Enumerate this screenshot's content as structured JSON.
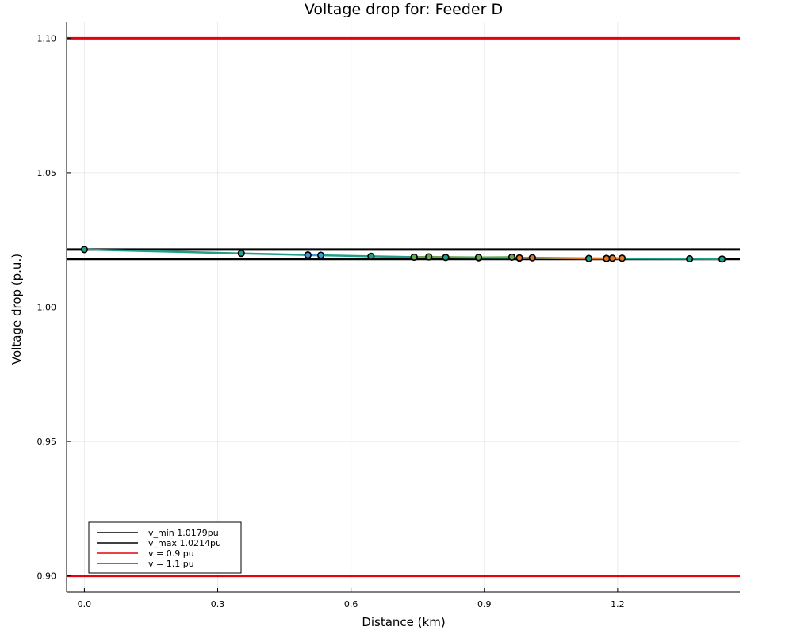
{
  "chart_data": {
    "type": "line",
    "title": "Voltage drop for: Feeder D",
    "xlabel": "Distance (km)",
    "ylabel": "Voltage drop (p.u.)",
    "xlim": [
      -0.04,
      1.475
    ],
    "ylim": [
      0.894,
      1.106
    ],
    "x_ticks": [
      0.0,
      0.3,
      0.6,
      0.9,
      1.2
    ],
    "x_tick_labels": [
      "0.0",
      "0.3",
      "0.6",
      "0.9",
      "1.2"
    ],
    "y_ticks": [
      0.9,
      0.95,
      1.0,
      1.05,
      1.1
    ],
    "y_tick_labels": [
      "0.90",
      "0.95",
      "1.00",
      "1.05",
      "1.10"
    ],
    "grid": true,
    "legend_position": "bottom-left",
    "legend": [
      {
        "label": "v_min 1.0179pu",
        "color": "#000000"
      },
      {
        "label": "v_max 1.0214pu",
        "color": "#000000"
      },
      {
        "label": "v = 0.9 pu",
        "color": "#e8000b"
      },
      {
        "label": "v = 1.1 pu",
        "color": "#e8000b"
      }
    ],
    "hlines": [
      {
        "y": 1.0179,
        "color": "#000000"
      },
      {
        "y": 1.0214,
        "color": "#000000"
      },
      {
        "y": 0.9,
        "color": "#e8000b"
      },
      {
        "y": 1.1,
        "color": "#e8000b"
      }
    ],
    "series": [
      {
        "color": "#1f9e89",
        "x": [
          0.0,
          0.353,
          0.503,
          0.645,
          0.742,
          0.813,
          0.887,
          0.979,
          1.135,
          1.175,
          1.362,
          1.435
        ],
        "y": [
          1.0214,
          1.02,
          1.0194,
          1.0189,
          1.0186,
          1.0185,
          1.0184,
          1.0183,
          1.0181,
          1.0181,
          1.018,
          1.0179
        ]
      },
      {
        "color": "#3a9bd9",
        "x": [
          0.503,
          0.532
        ],
        "y": [
          1.0194,
          1.0193
        ]
      },
      {
        "color": "#6aa84f",
        "x": [
          0.742,
          0.775,
          0.887,
          0.962
        ],
        "y": [
          1.0186,
          1.0187,
          1.0185,
          1.0186
        ]
      },
      {
        "color": "#d9762b",
        "x": [
          0.979,
          1.008,
          1.175,
          1.188,
          1.21
        ],
        "y": [
          1.0183,
          1.0184,
          1.0181,
          1.0182,
          1.0182
        ]
      }
    ]
  }
}
